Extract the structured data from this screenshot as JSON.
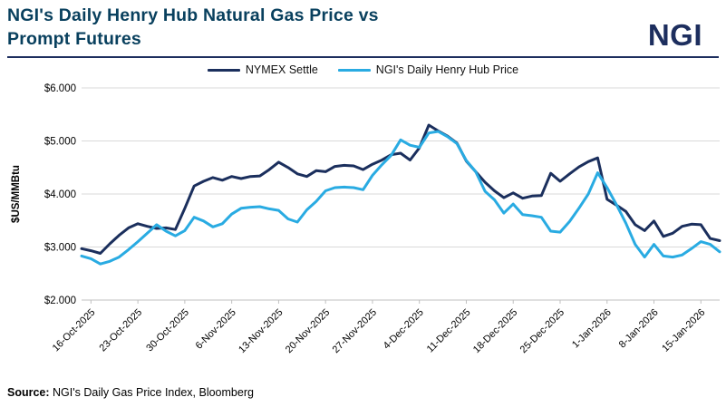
{
  "header": {
    "title_lines": [
      "NGI's Daily Henry Hub Natural Gas Price vs",
      "Prompt Futures"
    ],
    "logo_text": "NGI",
    "title_color": "#09405e",
    "logo_color": "#1d2e5e"
  },
  "legend": [
    {
      "label": "NYMEX Settle",
      "color": "#1b2f5d"
    },
    {
      "label": "NGI's Daily Henry Hub Price",
      "color": "#29abe2"
    }
  ],
  "source": {
    "prefix": "Source:",
    "text": " NGI's Daily Gas Price Index,  Bloomberg"
  },
  "chart_data": {
    "type": "line",
    "title": "NGI's Daily Henry Hub Natural Gas Price vs Prompt Futures",
    "ylabel": "$US/MMBtu",
    "xlabel": "",
    "ylim": [
      2,
      6
    ],
    "grid": true,
    "legend_position": "top-center",
    "yticks": [
      {
        "label": "$6.000",
        "value": 6
      },
      {
        "label": "$5.000",
        "value": 5
      },
      {
        "label": "$4.000",
        "value": 4
      },
      {
        "label": "$3.000",
        "value": 3
      },
      {
        "label": "$2.000",
        "value": 2
      }
    ],
    "xtick_labels": [
      "16-Oct-2025",
      "23-Oct-2025",
      "30-Oct-2025",
      "6-Nov-2025",
      "13-Nov-2025",
      "20-Nov-2025",
      "27-Nov-2025",
      "4-Dec-2025",
      "11-Dec-2025",
      "18-Dec-2025",
      "25-Dec-2025",
      "1-Jan-2026",
      "8-Jan-2026",
      "15-Jan-2026"
    ],
    "xtick_indices": [
      1,
      6,
      11,
      16,
      21,
      26,
      31,
      36,
      41,
      46,
      51,
      56,
      61,
      66
    ],
    "x_note": "weekday price series from 15-Oct-2025 to 19-Jan-2026, values in $US/MMBtu",
    "series": [
      {
        "name": "NYMEX Settle",
        "color": "#1b2f5d",
        "values": [
          2.97,
          2.93,
          2.88,
          3.06,
          3.22,
          3.36,
          3.44,
          3.39,
          3.35,
          3.36,
          3.33,
          3.73,
          4.15,
          4.24,
          4.31,
          4.26,
          4.33,
          4.29,
          4.33,
          4.34,
          4.46,
          4.6,
          4.5,
          4.38,
          4.33,
          4.44,
          4.42,
          4.52,
          4.54,
          4.53,
          4.46,
          4.56,
          4.64,
          4.74,
          4.77,
          4.64,
          4.87,
          5.3,
          5.19,
          5.09,
          4.96,
          4.62,
          4.42,
          4.22,
          4.06,
          3.93,
          4.02,
          3.92,
          3.96,
          3.97,
          4.39,
          4.24,
          4.38,
          4.51,
          4.61,
          4.68,
          3.9,
          3.79,
          3.67,
          3.42,
          3.31,
          3.49,
          3.2,
          3.26,
          3.39,
          3.43,
          3.42,
          3.16,
          3.12
        ]
      },
      {
        "name": "NGI's Daily Henry Hub Price",
        "color": "#29abe2",
        "values": [
          2.83,
          2.78,
          2.68,
          2.73,
          2.81,
          2.95,
          3.1,
          3.26,
          3.42,
          3.3,
          3.21,
          3.31,
          3.56,
          3.49,
          3.38,
          3.44,
          3.62,
          3.73,
          3.75,
          3.76,
          3.72,
          3.69,
          3.53,
          3.47,
          3.7,
          3.86,
          4.06,
          4.12,
          4.13,
          4.12,
          4.08,
          4.35,
          4.55,
          4.73,
          5.02,
          4.92,
          4.88,
          5.15,
          5.18,
          5.08,
          4.95,
          4.63,
          4.42,
          4.05,
          3.89,
          3.64,
          3.81,
          3.61,
          3.59,
          3.56,
          3.3,
          3.28,
          3.48,
          3.73,
          4.0,
          4.4,
          4.12,
          3.8,
          3.45,
          3.05,
          2.81,
          3.05,
          2.83,
          2.81,
          2.85,
          2.97,
          3.1,
          3.05,
          2.91
        ]
      }
    ],
    "style": {
      "grid_color": "#d9d9d9",
      "axis_color": "#c0c0c0",
      "label_color": "#000000",
      "line_width": 3
    }
  }
}
